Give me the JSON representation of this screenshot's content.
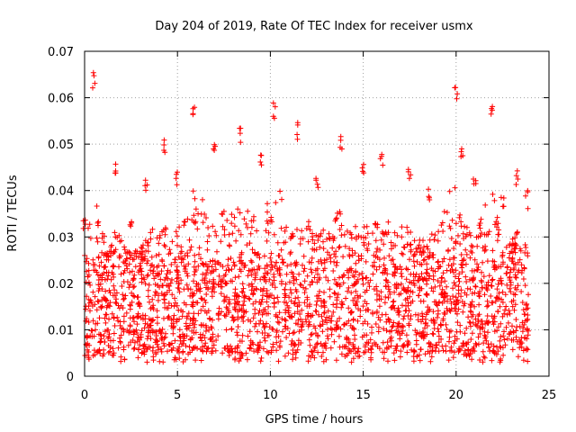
{
  "chart_data": {
    "type": "scatter",
    "title": "Day 204 of 2019, Rate Of TEC Index for receiver usmx",
    "xlabel": "GPS time / hours",
    "ylabel": "ROTI / TECUs",
    "xlim": [
      0,
      25
    ],
    "ylim": [
      0,
      0.07
    ],
    "x_ticks": [
      0,
      5,
      10,
      15,
      20,
      25
    ],
    "x_tick_labels": [
      "0",
      "5",
      "10",
      "15",
      "20",
      "25"
    ],
    "y_ticks": [
      0,
      0.01,
      0.02,
      0.03,
      0.04,
      0.05,
      0.06,
      0.07
    ],
    "y_tick_labels": [
      "0",
      "0.01",
      "0.02",
      "0.03",
      "0.04",
      "0.05",
      "0.06",
      "0.07"
    ],
    "grid": true,
    "marker": "+",
    "color": "#ff0000",
    "series": [
      {
        "name": "ROTI",
        "x_range": [
          0,
          23.9
        ],
        "typical_range": [
          0.005,
          0.025
        ],
        "envelope": [
          {
            "x": 0.0,
            "y": 0.034
          },
          {
            "x": 0.5,
            "y": 0.066
          },
          {
            "x": 1.0,
            "y": 0.031
          },
          {
            "x": 1.7,
            "y": 0.046
          },
          {
            "x": 2.5,
            "y": 0.036
          },
          {
            "x": 3.3,
            "y": 0.043
          },
          {
            "x": 4.3,
            "y": 0.051
          },
          {
            "x": 5.0,
            "y": 0.045
          },
          {
            "x": 5.9,
            "y": 0.058
          },
          {
            "x": 7.0,
            "y": 0.05
          },
          {
            "x": 8.4,
            "y": 0.054
          },
          {
            "x": 9.5,
            "y": 0.048
          },
          {
            "x": 10.2,
            "y": 0.059
          },
          {
            "x": 11.5,
            "y": 0.055
          },
          {
            "x": 12.5,
            "y": 0.044
          },
          {
            "x": 13.8,
            "y": 0.052
          },
          {
            "x": 15.0,
            "y": 0.046
          },
          {
            "x": 16.0,
            "y": 0.048
          },
          {
            "x": 17.5,
            "y": 0.046
          },
          {
            "x": 18.5,
            "y": 0.041
          },
          {
            "x": 20.0,
            "y": 0.063
          },
          {
            "x": 20.3,
            "y": 0.049
          },
          {
            "x": 21.0,
            "y": 0.043
          },
          {
            "x": 21.9,
            "y": 0.06
          },
          {
            "x": 22.5,
            "y": 0.039
          },
          {
            "x": 23.3,
            "y": 0.045
          },
          {
            "x": 23.8,
            "y": 0.04
          }
        ]
      }
    ]
  }
}
